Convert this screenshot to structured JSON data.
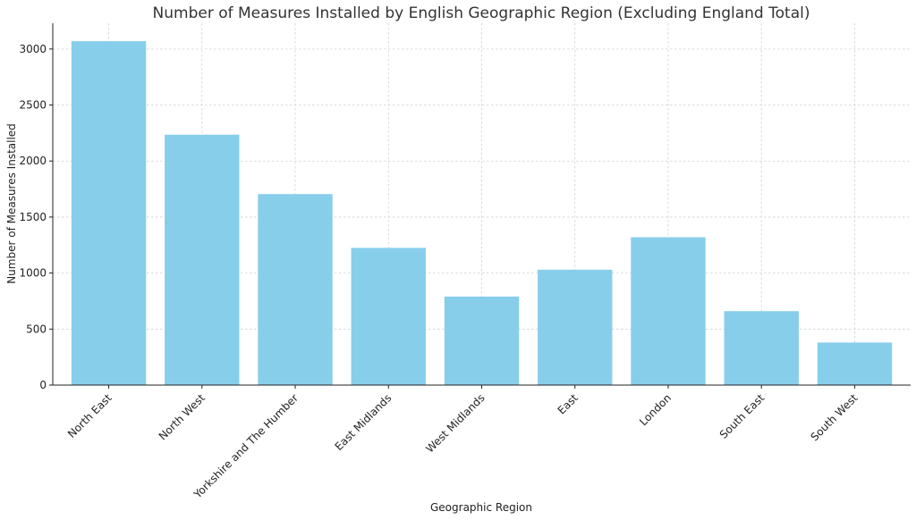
{
  "chart_data": {
    "type": "bar",
    "title": "Number of Measures Installed by English Geographic Region (Excluding England Total)",
    "xlabel": "Geographic Region",
    "ylabel": "Number of Measures Installed",
    "categories": [
      "North East",
      "North West",
      "Yorkshire and The Humber",
      "East Midlands",
      "West Midlands",
      "East",
      "London",
      "South East",
      "South West"
    ],
    "values": [
      3070,
      2235,
      1705,
      1225,
      790,
      1030,
      1320,
      660,
      380
    ],
    "ylim": [
      0,
      3230
    ],
    "yticks": [
      0,
      500,
      1000,
      1500,
      2000,
      2500,
      3000
    ],
    "grid": true,
    "legend": "none",
    "bar_color": "#87CEEB"
  }
}
